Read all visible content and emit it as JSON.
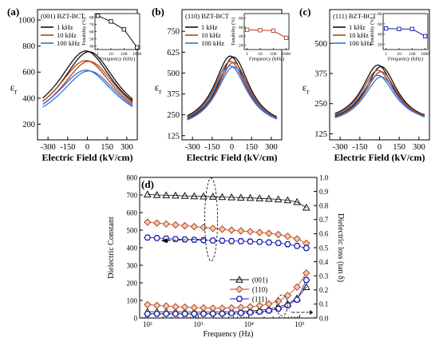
{
  "chart_data": [
    {
      "panel": "(a)",
      "type": "line",
      "sample": "(001) BZT-BCT",
      "xlabel": "Electric Field (kV/cm)",
      "ylabel": "εr",
      "xlim": [
        -380,
        380
      ],
      "ylim": [
        80,
        1080
      ],
      "xticks": [
        -300,
        -150,
        0,
        150,
        300
      ],
      "yticks": [
        200,
        400,
        600,
        800,
        1000
      ],
      "series": [
        {
          "name": "1 kHz",
          "color": "#111111",
          "peak": 735,
          "end": 190,
          "halfwidth": 260
        },
        {
          "name": "10 kHz",
          "color": "#b5451b",
          "peak": 665,
          "end": 180,
          "halfwidth": 270
        },
        {
          "name": "100 kHz",
          "color": "#3b6fd4",
          "peak": 595,
          "end": 175,
          "halfwidth": 280
        }
      ],
      "inset": {
        "xlabel": "Frequency (kHz)",
        "ylabel": "Tunability (%)",
        "xticks": [
          1,
          10,
          100,
          1000
        ],
        "yticks": [
          40,
          50,
          60,
          70,
          80
        ],
        "ylim": [
          35,
          85
        ],
        "color": "#111111",
        "x": [
          1,
          10,
          100,
          1000
        ],
        "y": [
          82,
          74,
          63,
          38
        ]
      }
    },
    {
      "panel": "(b)",
      "type": "line",
      "sample": "(110) BZT-BCT",
      "xlabel": "Electric Field (kV/cm)",
      "ylabel": "εr",
      "xlim": [
        -380,
        380
      ],
      "ylim": [
        100,
        880
      ],
      "xticks": [
        -300,
        -150,
        0,
        150,
        300
      ],
      "yticks": [
        125,
        250,
        375,
        500,
        625,
        750
      ],
      "series": [
        {
          "name": "1 kHz",
          "color": "#111111",
          "peak": 575,
          "end": 175,
          "halfwidth": 150
        },
        {
          "name": "10 kHz",
          "color": "#b5451b",
          "peak": 545,
          "end": 170,
          "halfwidth": 155
        },
        {
          "name": "100 kHz",
          "color": "#3b6fd4",
          "peak": 520,
          "end": 165,
          "halfwidth": 160
        }
      ],
      "inset": {
        "xlabel": "Frequency (kHz)",
        "ylabel": "Tunability (%)",
        "xticks": [
          1,
          10,
          100,
          1000
        ],
        "yticks": [
          20,
          40,
          60,
          80
        ],
        "ylim": [
          10,
          90
        ],
        "color": "#b5451b",
        "x": [
          1,
          10,
          100,
          1000
        ],
        "y": [
          54,
          53,
          52,
          36
        ]
      }
    },
    {
      "panel": "(c)",
      "type": "line",
      "sample": "(111) BZT-BCT",
      "xlabel": "Electric Field (kV/cm)",
      "ylabel": "εr",
      "xlim": [
        -380,
        380
      ],
      "ylim": [
        100,
        640
      ],
      "xticks": [
        -300,
        -150,
        0,
        150,
        300
      ],
      "yticks": [
        125,
        250,
        375,
        500
      ],
      "series": [
        {
          "name": "1 kHz",
          "color": "#111111",
          "peak": 395,
          "end": 170,
          "halfwidth": 150
        },
        {
          "name": "10 kHz",
          "color": "#b5451b",
          "peak": 375,
          "end": 168,
          "halfwidth": 155
        },
        {
          "name": "100 kHz",
          "color": "#3b6fd4",
          "peak": 355,
          "end": 165,
          "halfwidth": 160
        }
      ],
      "inset": {
        "xlabel": "Frequency (kHz)",
        "ylabel": "Tunability (%)",
        "xticks": [
          1,
          10,
          100,
          1000
        ],
        "yticks": [
          20,
          40,
          60,
          80
        ],
        "ylim": [
          10,
          80
        ],
        "color": "#1a1ab0",
        "x": [
          1,
          10,
          100,
          1000
        ],
        "y": [
          51,
          50,
          50,
          36
        ]
      }
    },
    {
      "panel": "(d)",
      "type": "scatter",
      "xlabel": "Frequency (Hz)",
      "ylabel": "Dielectric Constant",
      "y2label": "Dielectric loss (tan δ)",
      "xscale": "log",
      "xlim": [
        70,
        220000
      ],
      "ylim": [
        0,
        800
      ],
      "y2lim": [
        0,
        1.0
      ],
      "xticks": [
        100,
        1000,
        10000,
        100000
      ],
      "xtick_labels": [
        "10²",
        "10³",
        "10⁴",
        "10⁵"
      ],
      "yticks": [
        0,
        100,
        200,
        300,
        400,
        500,
        600,
        700,
        800
      ],
      "y2ticks": [
        0.0,
        0.1,
        0.2,
        0.3,
        0.4,
        0.5,
        0.6,
        0.7,
        0.8,
        0.9,
        1.0
      ],
      "y2tick_labels": [
        "0.0",
        "0.1",
        "0.2",
        "0.3",
        "0.4",
        "0.5",
        "0.6",
        "0.7",
        "0.8",
        "0.9",
        "1.0"
      ],
      "x": [
        100,
        153,
        233,
        357,
        546,
        835,
        1276,
        1951,
        2983,
        4560,
        6972,
        10658,
        16295,
        24912,
        38087,
        58230,
        89027,
        136111
      ],
      "legend": [
        "(001)",
        "(110)",
        "(111)"
      ],
      "series": [
        {
          "name": "(001)",
          "axis": "left",
          "marker": "triangle",
          "color": "#111111",
          "values": [
            703,
            700,
            698,
            697,
            695,
            693,
            692,
            690,
            688,
            687,
            685,
            683,
            681,
            678,
            675,
            670,
            660,
            628
          ]
        },
        {
          "name": "(110)",
          "axis": "left",
          "marker": "diamond",
          "color": "#b5451b",
          "values": [
            545,
            540,
            535,
            530,
            525,
            520,
            515,
            510,
            505,
            500,
            496,
            492,
            487,
            482,
            475,
            465,
            450,
            425
          ]
        },
        {
          "name": "(111)",
          "axis": "left",
          "marker": "hexagon",
          "color": "#1a1ab0",
          "values": [
            458,
            455,
            452,
            449,
            447,
            445,
            443,
            441,
            440,
            438,
            437,
            435,
            433,
            430,
            427,
            420,
            410,
            398
          ]
        },
        {
          "name": "(001)",
          "axis": "right",
          "marker": "triangle",
          "color": "#111111",
          "values": [
            0.045,
            0.045,
            0.044,
            0.044,
            0.043,
            0.043,
            0.043,
            0.043,
            0.044,
            0.045,
            0.047,
            0.05,
            0.055,
            0.063,
            0.078,
            0.1,
            0.14,
            0.22
          ]
        },
        {
          "name": "(110)",
          "axis": "right",
          "marker": "diamond",
          "color": "#b5451b",
          "values": [
            0.095,
            0.09,
            0.085,
            0.08,
            0.077,
            0.074,
            0.072,
            0.07,
            0.07,
            0.072,
            0.075,
            0.08,
            0.088,
            0.1,
            0.12,
            0.16,
            0.22,
            0.32
          ]
        },
        {
          "name": "(111)",
          "axis": "right",
          "marker": "hexagon",
          "color": "#1a1ab0",
          "values": [
            0.03,
            0.03,
            0.03,
            0.03,
            0.03,
            0.03,
            0.03,
            0.031,
            0.032,
            0.034,
            0.036,
            0.04,
            0.045,
            0.053,
            0.066,
            0.09,
            0.13,
            0.27
          ]
        }
      ]
    }
  ]
}
